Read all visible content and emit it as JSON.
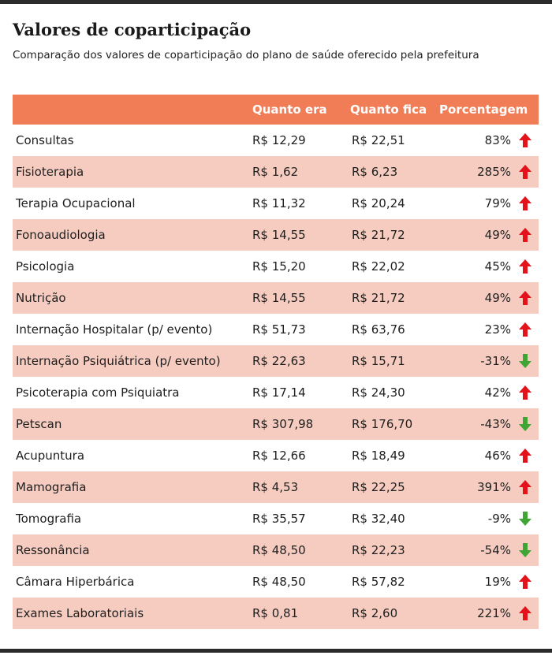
{
  "title": "Valores de coparticipação",
  "subtitle": "Comparação dos valores de coparticipação do plano de saúde oferecido pela prefeitura",
  "columns": {
    "name": "",
    "before": "Quanto era",
    "after": "Quanto fica",
    "percent": "Porcentagem"
  },
  "colors": {
    "header": "#f07d56",
    "row_alt": "#f6ccc0",
    "up": "#e3121b",
    "down": "#3fa535"
  },
  "rows": [
    {
      "name": "Consultas",
      "before": "R$ 12,29",
      "after": "R$ 22,51",
      "percent": "83%",
      "trend": "up-arrow-icon"
    },
    {
      "name": "Fisioterapia",
      "before": "R$ 1,62",
      "after": "R$ 6,23",
      "percent": "285%",
      "trend": "up-arrow-icon"
    },
    {
      "name": "Terapia Ocupacional",
      "before": "R$ 11,32",
      "after": "R$ 20,24",
      "percent": "79%",
      "trend": "up-arrow-icon"
    },
    {
      "name": "Fonoaudiologia",
      "before": "R$ 14,55",
      "after": "R$ 21,72",
      "percent": "49%",
      "trend": "up-arrow-icon"
    },
    {
      "name": "Psicologia",
      "before": "R$ 15,20",
      "after": "R$ 22,02",
      "percent": "45%",
      "trend": "up-arrow-icon"
    },
    {
      "name": "Nutrição",
      "before": "R$ 14,55",
      "after": "R$ 21,72",
      "percent": "49%",
      "trend": "up-arrow-icon"
    },
    {
      "name": "Internação Hospitalar (p/ evento)",
      "before": "R$ 51,73",
      "after": "R$ 63,76",
      "percent": "23%",
      "trend": "up-arrow-icon"
    },
    {
      "name": "Internação Psiquiátrica (p/ evento)",
      "before": "R$ 22,63",
      "after": "R$ 15,71",
      "percent": "-31%",
      "trend": "down-arrow-icon"
    },
    {
      "name": "Psicoterapia com Psiquiatra",
      "before": "R$ 17,14",
      "after": "R$ 24,30",
      "percent": "42%",
      "trend": "up-arrow-icon"
    },
    {
      "name": "Petscan",
      "before": "R$ 307,98",
      "after": "R$ 176,70",
      "percent": "-43%",
      "trend": "down-arrow-icon"
    },
    {
      "name": "Acupuntura",
      "before": "R$ 12,66",
      "after": "R$ 18,49",
      "percent": "46%",
      "trend": "up-arrow-icon"
    },
    {
      "name": "Mamografia",
      "before": "R$ 4,53",
      "after": "R$ 22,25",
      "percent": "391%",
      "trend": "up-arrow-icon"
    },
    {
      "name": "Tomografia",
      "before": "R$ 35,57",
      "after": "R$ 32,40",
      "percent": "-9%",
      "trend": "down-arrow-icon"
    },
    {
      "name": "Ressonância",
      "before": "R$ 48,50",
      "after": "R$ 22,23",
      "percent": "-54%",
      "trend": "down-arrow-icon"
    },
    {
      "name": "Câmara Hiperbárica",
      "before": "R$ 48,50",
      "after": "R$ 57,82",
      "percent": "19%",
      "trend": "up-arrow-icon"
    },
    {
      "name": "Exames Laboratoriais",
      "before": "R$ 0,81",
      "after": "R$ 2,60",
      "percent": "221%",
      "trend": "up-arrow-icon"
    }
  ]
}
